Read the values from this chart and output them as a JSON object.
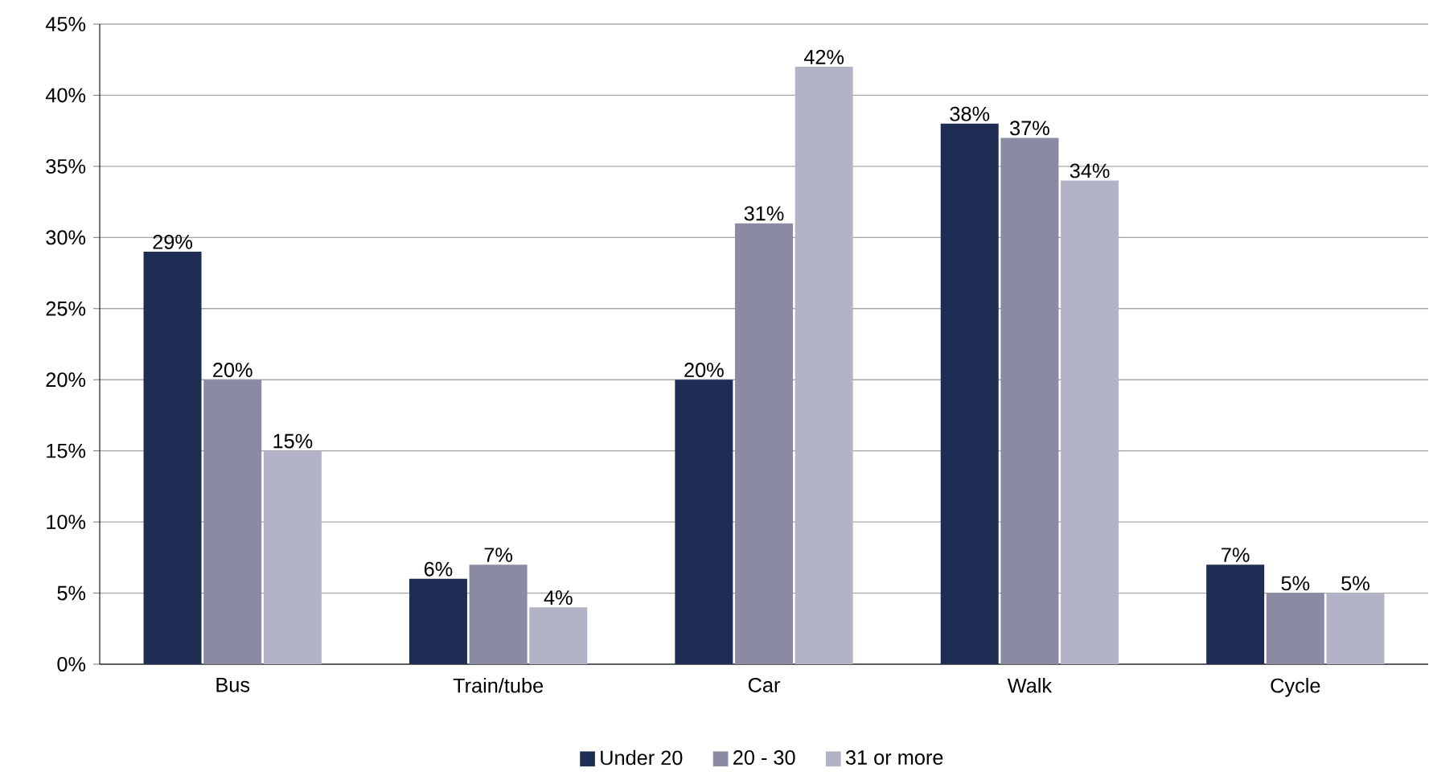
{
  "chart_data": {
    "type": "bar",
    "categories": [
      "Bus",
      "Train/tube",
      "Car",
      "Walk",
      "Cycle"
    ],
    "series": [
      {
        "name": "Under 20",
        "color": "#1f2d54",
        "values": [
          29,
          6,
          20,
          38,
          7
        ],
        "value_labels": [
          "29%",
          "6%",
          "20%",
          "38%",
          "7%"
        ]
      },
      {
        "name": "20 - 30",
        "color": "#8a8aa3",
        "values": [
          20,
          7,
          31,
          37,
          5
        ],
        "value_labels": [
          "20%",
          "7%",
          "31%",
          "37%",
          "5%"
        ]
      },
      {
        "name": "31 or more",
        "color": "#b3b3c8",
        "values": [
          15,
          4,
          42,
          34,
          5
        ],
        "value_labels": [
          "15%",
          "4%",
          "42%",
          "34%",
          "5%"
        ]
      }
    ],
    "ylim": [
      0,
      45
    ],
    "yticks": [
      {
        "value": 0,
        "label": "0%"
      },
      {
        "value": 5,
        "label": "5%"
      },
      {
        "value": 10,
        "label": "10%"
      },
      {
        "value": 15,
        "label": "15%"
      },
      {
        "value": 20,
        "label": "20%"
      },
      {
        "value": 25,
        "label": "25%"
      },
      {
        "value": 30,
        "label": "30%"
      },
      {
        "value": 35,
        "label": "35%"
      },
      {
        "value": 40,
        "label": "40%"
      },
      {
        "value": 45,
        "label": "45%"
      }
    ],
    "grid": "y",
    "legend": "bottom"
  }
}
